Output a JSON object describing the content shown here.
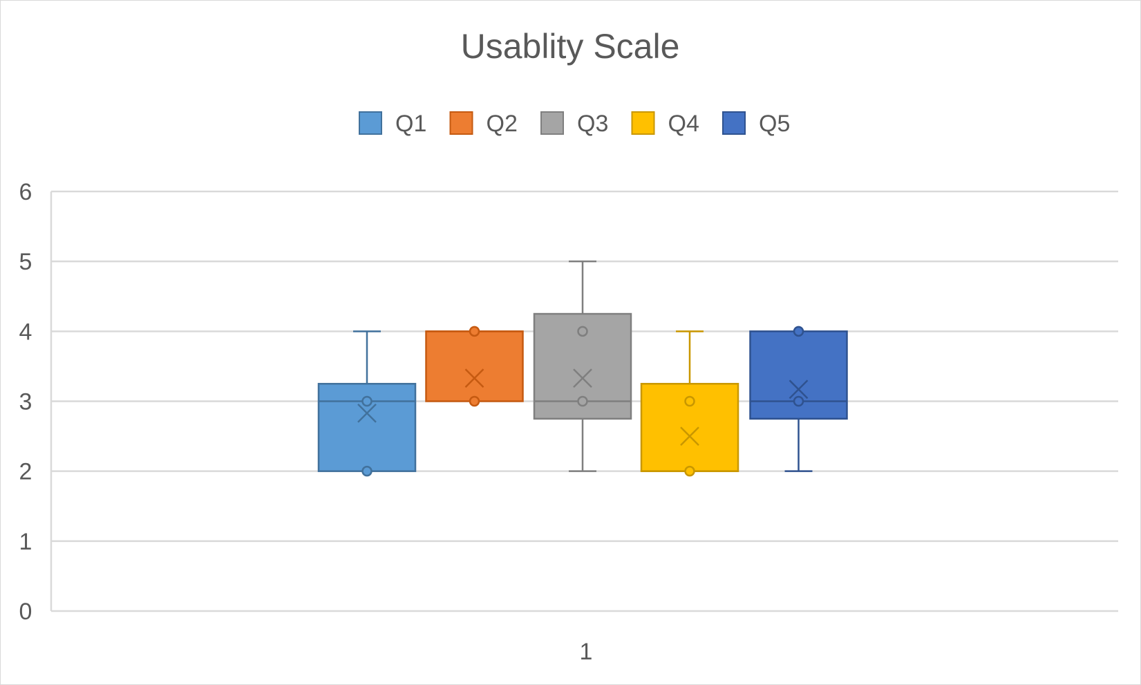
{
  "chart_data": {
    "type": "boxplot",
    "title": "Usablity Scale",
    "categories": [
      "1"
    ],
    "ylim": [
      0,
      6
    ],
    "yticks": [
      0,
      1,
      2,
      3,
      4,
      5,
      6
    ],
    "grid": true,
    "legend_position": "top",
    "series": [
      {
        "name": "Q1",
        "color": "#5b9bd5",
        "stroke": "#41719c",
        "min": 2,
        "q1": 2,
        "median": 3,
        "q3": 3.25,
        "max": 4,
        "mean": 2.83,
        "points": [
          3,
          2
        ]
      },
      {
        "name": "Q2",
        "color": "#ed7d31",
        "stroke": "#c55a11",
        "min": 3,
        "q1": 3,
        "median": 4,
        "q3": 4,
        "max": 4,
        "mean": 3.33,
        "points": [
          4,
          3
        ]
      },
      {
        "name": "Q3",
        "color": "#a5a5a5",
        "stroke": "#7f7f7f",
        "min": 2,
        "q1": 2.75,
        "median": 3,
        "q3": 4.25,
        "max": 5,
        "mean": 3.33,
        "points": [
          4,
          3
        ]
      },
      {
        "name": "Q4",
        "color": "#ffc000",
        "stroke": "#c99700",
        "min": 2,
        "q1": 2,
        "median": 2,
        "q3": 3.25,
        "max": 4,
        "mean": 2.5,
        "points": [
          3,
          2
        ]
      },
      {
        "name": "Q5",
        "color": "#4472c4",
        "stroke": "#2f528f",
        "min": 2,
        "q1": 2.75,
        "median": 3,
        "q3": 4,
        "max": 4,
        "mean": 3.17,
        "points": [
          4,
          3
        ]
      }
    ]
  }
}
